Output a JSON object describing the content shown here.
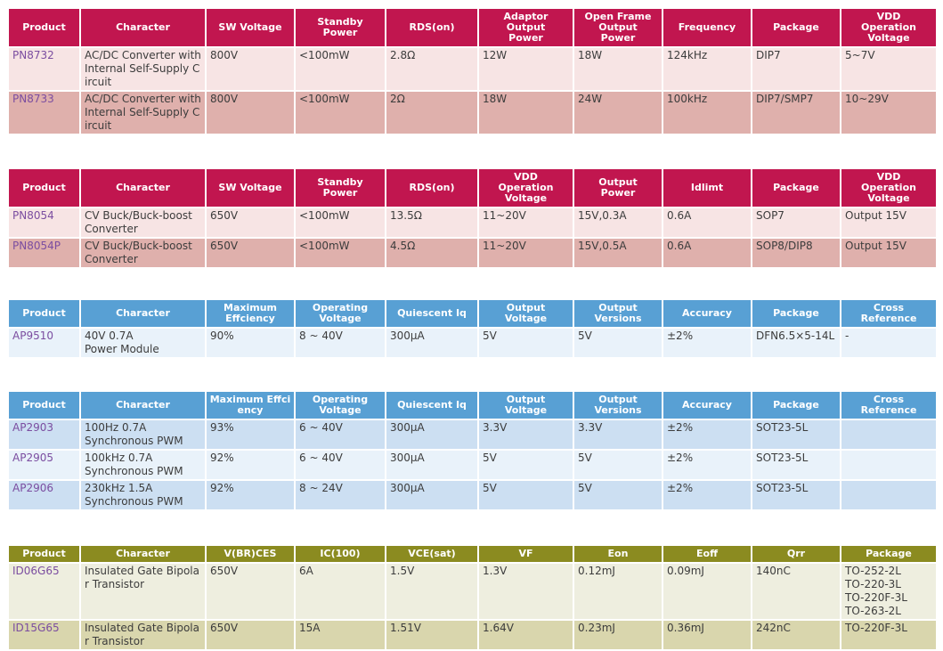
{
  "theme": {
    "text_color": "#3C3C3C",
    "link_color": "#7B4DA0",
    "header_text_color": "#FFFFFF"
  },
  "tables": [
    {
      "name": "acdc-converter-table",
      "theme": {
        "header_bg": "#C1164F",
        "row_bgs": [
          "#F7E4E4",
          "#DFB0AC"
        ]
      },
      "columns": [
        "Product",
        "Character",
        "SW Voltage",
        "Standby\nPower",
        "RDS(on)",
        "Adaptor\nOutput\nPower",
        "Open Frame\nOutput\nPower",
        "Frequency",
        "Package",
        "VDD\nOperation\nVoltage"
      ],
      "rows": [
        {
          "product": "PN8732",
          "character": "AC/DC Converter with Internal Self-Supply Circuit",
          "cells": [
            "800V",
            "<100mW",
            "2.8Ω",
            "12W",
            "18W",
            "124kHz",
            "DIP7",
            "5~7V"
          ]
        },
        {
          "product": "PN8733",
          "character": "AC/DC Converter with Internal Self-Supply Circuit",
          "cells": [
            "800V",
            "<100mW",
            "2Ω",
            "18W",
            "24W",
            "100kHz",
            "DIP7/SMP7",
            "10~29V"
          ]
        }
      ]
    },
    {
      "name": "cv-buck-converter-table",
      "theme": {
        "header_bg": "#C1164F",
        "row_bgs": [
          "#F7E4E4",
          "#DFB0AC"
        ]
      },
      "columns": [
        "Product",
        "Character",
        "SW Voltage",
        "Standby\nPower",
        "RDS(on)",
        "VDD\nOperation\nVoltage",
        "Output\nPower",
        "Idlimt",
        "Package",
        "VDD\nOperation\nVoltage"
      ],
      "rows": [
        {
          "product": "PN8054",
          "character": "CV Buck/Buck-boost  Converter",
          "cells": [
            "650V",
            "<100mW",
            "13.5Ω",
            "11~20V",
            "15V,0.3A",
            "0.6A",
            "SOP7",
            "Output 15V"
          ]
        },
        {
          "product": "PN8054P",
          "character": "CV Buck/Buck-boost  Converter",
          "cells": [
            "650V",
            "<100mW",
            "4.5Ω",
            "11~20V",
            "15V,0.5A",
            "0.6A",
            "SOP8/DIP8",
            "Output 15V"
          ]
        }
      ]
    },
    {
      "name": "power-module-table",
      "theme": {
        "header_bg": "#58A0D4",
        "row_bgs": [
          "#E9F2FA"
        ]
      },
      "columns": [
        "Product",
        "Character",
        "Maximum\nEffciency",
        "Operating\nVoltage",
        "Quiescent Iq",
        "Output\nVoltage",
        "Output\nVersions",
        "Accuracy",
        "Package",
        "Cross\nReference"
      ],
      "rows": [
        {
          "product": "AP9510",
          "character": "40V 0.7A\nPower Module",
          "cells": [
            "90%",
            "8 ~ 40V",
            "300µA",
            "5V",
            "5V",
            "±2%",
            "DFN6.5×5-14L",
            "-"
          ]
        }
      ]
    },
    {
      "name": "synchronous-pwm-table",
      "theme": {
        "header_bg": "#58A0D4",
        "row_bgs": [
          "#CCDFF2",
          "#E9F2FA",
          "#CCDFF2"
        ]
      },
      "columns": [
        "Product",
        "Character",
        "Maximum Effci\nency",
        "Operating\nVoltage",
        "Quiescent Iq",
        "Output\nVoltage",
        "Output\nVersions",
        "Accuracy",
        "Package",
        "Cross\nReference"
      ],
      "rows": [
        {
          "product": "AP2903",
          "character": "100Hz 0.7A\nSynchronous PWM",
          "cells": [
            "93%",
            "6 ~ 40V",
            "300µA",
            "3.3V",
            "3.3V",
            "±2%",
            "SOT23-5L",
            ""
          ]
        },
        {
          "product": "AP2905",
          "character": "100kHz 0.7A\nSynchronous PWM",
          "cells": [
            "92%",
            "6 ~ 40V",
            "300µA",
            "5V",
            "5V",
            "±2%",
            "SOT23-5L",
            ""
          ]
        },
        {
          "product": "AP2906",
          "character": "230kHz 1.5A\nSynchronous PWM",
          "cells": [
            "92%",
            "8 ~ 24V",
            "300µA",
            "5V",
            "5V",
            "±2%",
            "SOT23-5L",
            ""
          ]
        }
      ]
    },
    {
      "name": "igbt-table",
      "theme": {
        "header_bg": "#8B8B20",
        "row_bgs": [
          "#EEEEDF",
          "#D9D6AD"
        ]
      },
      "columns": [
        "Product",
        "Character",
        "V(BR)CES",
        "IC(100)",
        "VCE(sat)",
        "VF",
        "Eon",
        "Eoff",
        "Qrr",
        "Package"
      ],
      "rows": [
        {
          "product": "ID06G65",
          "character": "Insulated Gate Bipolar Transistor",
          "cells": [
            "650V",
            "6A",
            "1.5V",
            "1.3V",
            "0.12mJ",
            "0.09mJ",
            "140nC",
            "TO-252-2L\nTO-220-3L\nTO-220F-3L\nTO-263-2L"
          ]
        },
        {
          "product": "ID15G65",
          "character": "Insulated Gate Bipolar Transistor",
          "cells": [
            "650V",
            "15A",
            "1.51V",
            "1.64V",
            "0.23mJ",
            "0.36mJ",
            "242nC",
            "TO-220F-3L"
          ]
        }
      ]
    }
  ]
}
